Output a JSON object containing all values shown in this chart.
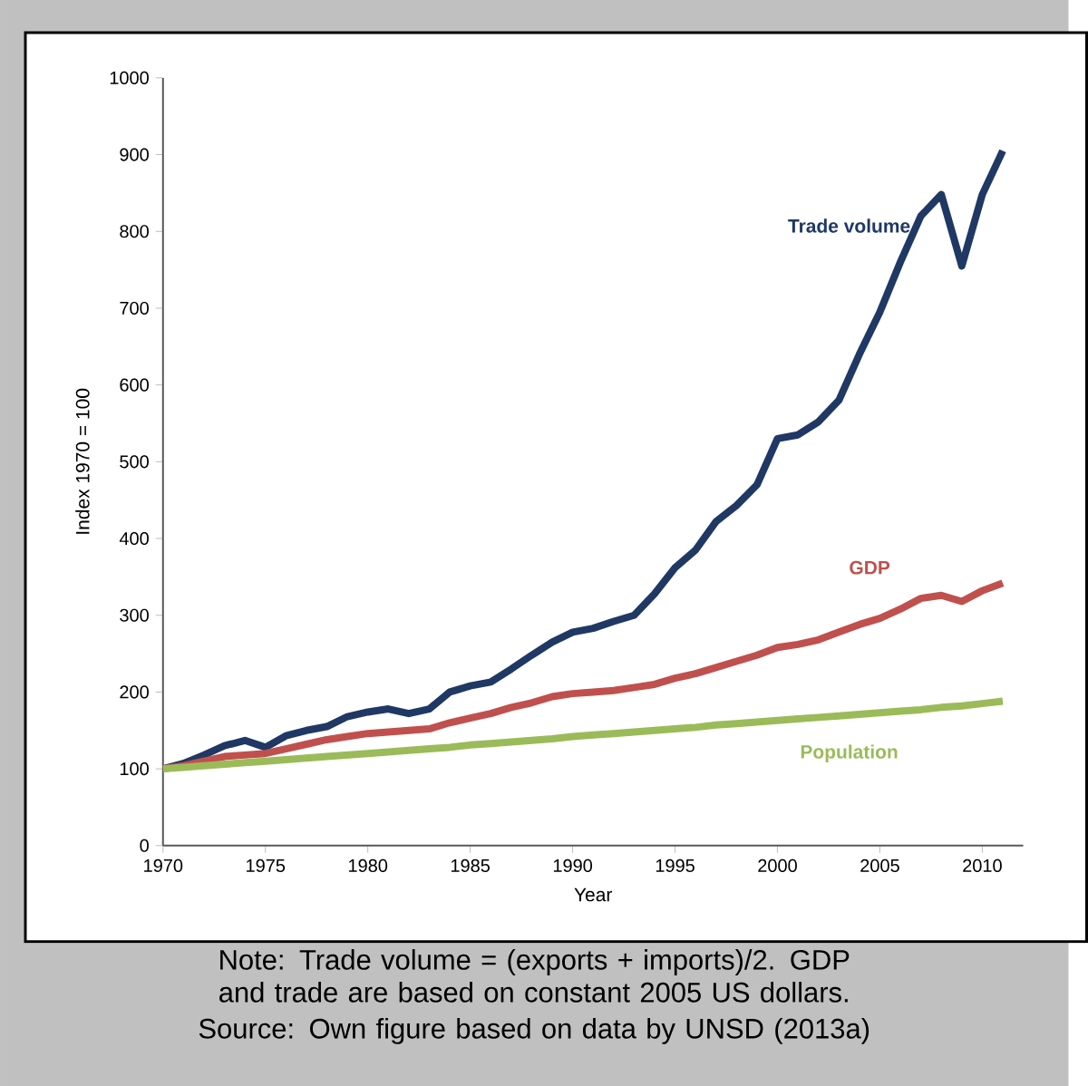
{
  "chart_data": {
    "type": "line",
    "xlabel": "Year",
    "ylabel": "Index 1970 = 100",
    "x": [
      1970,
      1971,
      1972,
      1973,
      1974,
      1975,
      1976,
      1977,
      1978,
      1979,
      1980,
      1981,
      1982,
      1983,
      1984,
      1985,
      1986,
      1987,
      1988,
      1989,
      1990,
      1991,
      1992,
      1993,
      1994,
      1995,
      1996,
      1997,
      1998,
      1999,
      2000,
      2001,
      2002,
      2003,
      2004,
      2005,
      2006,
      2007,
      2008,
      2009,
      2010,
      2011
    ],
    "xlim": [
      1970,
      2012
    ],
    "xticks": [
      1970,
      1975,
      1980,
      1985,
      1990,
      1995,
      2000,
      2005,
      2010
    ],
    "ylim": [
      0,
      1000
    ],
    "yticks": [
      0,
      100,
      200,
      300,
      400,
      500,
      600,
      700,
      800,
      900,
      1000
    ],
    "series": [
      {
        "name": "Trade volume",
        "color": "#1f3864",
        "values": [
          100,
          107,
          118,
          130,
          137,
          128,
          143,
          150,
          155,
          168,
          174,
          178,
          172,
          178,
          200,
          208,
          213,
          230,
          248,
          265,
          278,
          283,
          292,
          300,
          328,
          362,
          385,
          422,
          443,
          470,
          530,
          535,
          552,
          580,
          640,
          695,
          760,
          820,
          848,
          755,
          848,
          905
        ]
      },
      {
        "name": "GDP",
        "color": "#c0504d",
        "values": [
          100,
          104,
          110,
          116,
          118,
          120,
          126,
          132,
          138,
          142,
          146,
          148,
          150,
          152,
          160,
          166,
          172,
          180,
          186,
          194,
          198,
          200,
          202,
          206,
          210,
          218,
          224,
          232,
          240,
          248,
          258,
          262,
          268,
          278,
          288,
          296,
          308,
          322,
          326,
          318,
          332,
          342
        ]
      },
      {
        "name": "Population",
        "color": "#9bbb59",
        "values": [
          100,
          102,
          104,
          106,
          108,
          110,
          112,
          114,
          116,
          118,
          120,
          122,
          124,
          126,
          128,
          131,
          133,
          135,
          137,
          139,
          142,
          144,
          146,
          148,
          150,
          152,
          154,
          157,
          159,
          161,
          163,
          165,
          167,
          169,
          171,
          173,
          175,
          177,
          180,
          182,
          185,
          188
        ]
      }
    ],
    "annotations": [
      "Note: Trade volume = (exports + imports)/2. GDP and trade are based on constant 2005 US dollars.",
      "Source: Own figure based on data by UNSD (2013a)"
    ]
  }
}
